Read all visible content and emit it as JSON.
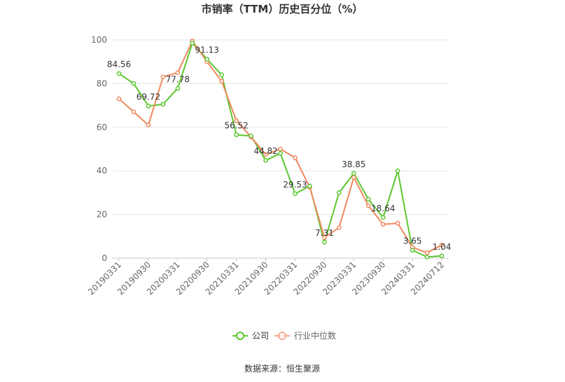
{
  "chart_data": {
    "type": "line",
    "title": "市销率（TTM）历史百分位（%）",
    "source": "数据来源：恒生聚源",
    "ylim": [
      0,
      100
    ],
    "yticks": [
      0,
      20,
      40,
      60,
      80,
      100
    ],
    "grid": true,
    "legend_position": "bottom-center",
    "xtick_labels": [
      "20190331",
      "20190930",
      "20200331",
      "20200930",
      "20210331",
      "20210930",
      "20220331",
      "20220930",
      "20230331",
      "20230930",
      "20240331",
      "20240712"
    ],
    "x": [
      "20190331",
      "20190630",
      "20190930",
      "20191231",
      "20200331",
      "20200630",
      "20200930",
      "20201231",
      "20210331",
      "20210630",
      "20210930",
      "20211231",
      "20220331",
      "20220630",
      "20220930",
      "20221231",
      "20230331",
      "20230630",
      "20230930",
      "20231231",
      "20240331",
      "20240630",
      "20240712"
    ],
    "series": [
      {
        "name": "公司",
        "color": "#5cc72f",
        "values": [
          84.56,
          80,
          69.72,
          70.5,
          77.78,
          98.5,
          91.13,
          84,
          56.52,
          56,
          44.82,
          48,
          29.53,
          33,
          7.31,
          30,
          38.85,
          27,
          18.64,
          40,
          3.65,
          0.5,
          1.04
        ]
      },
      {
        "name": "行业中位数",
        "color": "#f0885e",
        "values": [
          73,
          67,
          61,
          83,
          85,
          99.5,
          90,
          81,
          63,
          55.5,
          47.5,
          50,
          46,
          32.5,
          9.5,
          14,
          37,
          24,
          15.5,
          16,
          5,
          2.5,
          6
        ]
      }
    ],
    "annotations": [
      {
        "series": 0,
        "index": 0,
        "text": "84.56"
      },
      {
        "series": 0,
        "index": 2,
        "text": "69.72"
      },
      {
        "series": 0,
        "index": 4,
        "text": "77.78"
      },
      {
        "series": 0,
        "index": 6,
        "text": "91.13"
      },
      {
        "series": 0,
        "index": 8,
        "text": "56.52"
      },
      {
        "series": 0,
        "index": 10,
        "text": "44.82"
      },
      {
        "series": 0,
        "index": 12,
        "text": "29.53"
      },
      {
        "series": 0,
        "index": 14,
        "text": "7.31"
      },
      {
        "series": 0,
        "index": 16,
        "text": "38.85"
      },
      {
        "series": 0,
        "index": 18,
        "text": "18.64"
      },
      {
        "series": 0,
        "index": 20,
        "text": "3.65"
      },
      {
        "series": 0,
        "index": 22,
        "text": "1.04"
      }
    ]
  }
}
